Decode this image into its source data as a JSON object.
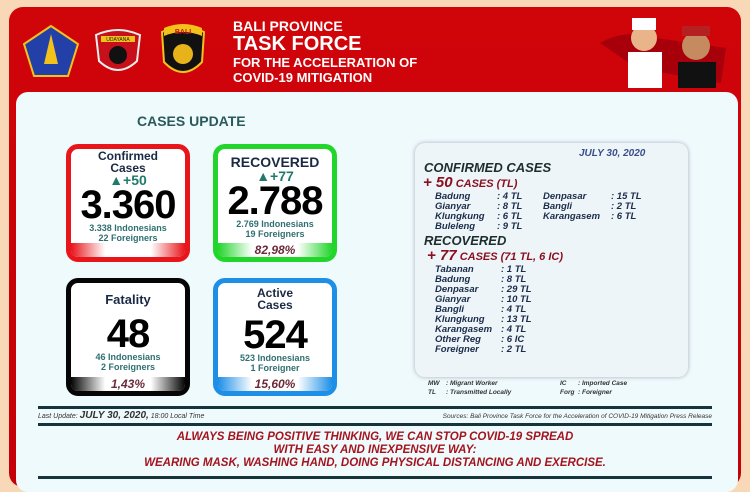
{
  "header": {
    "line1": "BALI PROVINCE",
    "line2": "TASK FORCE",
    "line3": "FOR THE ACCELERATION OF",
    "line4": "COVID-19 MITIGATION",
    "logo2_text": "UDAYANA",
    "logo3_text": "BALI"
  },
  "section_title": "CASES UPDATE",
  "cards": {
    "confirmed": {
      "title1": "Confirmed",
      "title2": "Cases",
      "increase": "+50",
      "total": "3.360",
      "sub1": "3.338 Indonesians",
      "sub2": "22 Foreigners",
      "pct": "",
      "color": "#e8151b"
    },
    "recovered": {
      "title1": "RECOVERED",
      "increase": "+77",
      "total": "2.788",
      "sub1": "2.769 Indonesians",
      "sub2": "19 Foreigners",
      "pct": "82,98%",
      "color": "#22d52a"
    },
    "fatality": {
      "title1": "Fatality",
      "total": "48",
      "sub1": "46 Indonesians",
      "sub2": "2 Foreigners",
      "pct": "1,43%",
      "color": "#050505"
    },
    "active": {
      "title1": "Active",
      "title2": "Cases",
      "total": "524",
      "sub1": "523 Indonesians",
      "sub2": "1 Foreigner",
      "pct": "15,60%",
      "color": "#1e8fe6"
    }
  },
  "detail": {
    "date": "JULY 30, 2020",
    "confirmed_heading": "CONFIRMED CASES",
    "confirmed_count": "+ 50",
    "confirmed_suffix": "CASES (TL)",
    "confirmed_rows": [
      [
        "Badung",
        ": 4 TL"
      ],
      [
        "Gianyar",
        ": 8 TL"
      ],
      [
        "Klungkung",
        ": 6 TL"
      ],
      [
        "Buleleng",
        ": 9 TL"
      ],
      [
        "Denpasar",
        ": 15 TL"
      ],
      [
        "Bangli",
        ": 2 TL"
      ],
      [
        "Karangasem",
        ": 6 TL"
      ]
    ],
    "recovered_heading": "RECOVERED",
    "recovered_count": "+ 77",
    "recovered_suffix": "CASES (71 TL, 6 IC)",
    "recovered_rows": [
      [
        "Tabanan",
        ": 1 TL"
      ],
      [
        "Badung",
        ": 8 TL"
      ],
      [
        "Denpasar",
        ": 29 TL"
      ],
      [
        "Gianyar",
        ": 10 TL"
      ],
      [
        "Bangli",
        ": 4 TL"
      ],
      [
        "Klungkung",
        ": 13 TL"
      ],
      [
        "Karangasem",
        ": 4 TL"
      ],
      [
        "Other Reg",
        ": 6 IC"
      ],
      [
        "Foreigner",
        ": 2 TL"
      ]
    ]
  },
  "legend": [
    [
      "MW",
      ":  Migrant Worker"
    ],
    [
      "TL",
      ":  Transmitted Locally"
    ],
    [
      "IC",
      ":  Imported Case"
    ],
    [
      "Forg",
      ": Foreigner"
    ]
  ],
  "footer": {
    "last_update_label": "Last Update:",
    "last_update_date": "JULY 30, 2020,",
    "last_update_time": "18:00 Local Time",
    "sources": "Sources:  Bali Province Task Force for the Acceleration of COVID-19 Mitigation Press Release"
  },
  "slogan": [
    "ALWAYS BEING POSITIVE THINKING, WE CAN STOP COVID-19 SPREAD",
    "WITH EASY AND INEXPENSIVE WAY:",
    "WEARING MASK, WASHING HAND, DOING PHYSICAL DISTANCING AND EXERCISE."
  ]
}
